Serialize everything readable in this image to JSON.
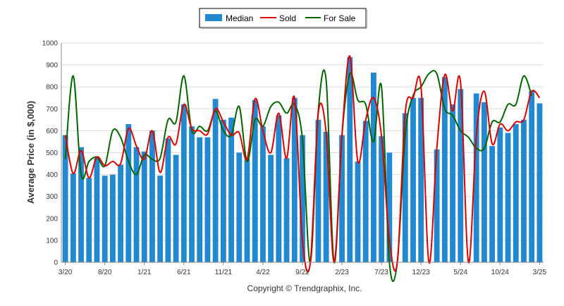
{
  "chart_data": {
    "type": "bar",
    "ylabel": "Average Price (in $,000)",
    "ylim": [
      0,
      1000
    ],
    "yticks": [
      0,
      100,
      200,
      300,
      400,
      500,
      600,
      700,
      800,
      900,
      1000
    ],
    "x_tick_labels": [
      "3/20",
      "8/20",
      "1/21",
      "6/21",
      "11/21",
      "4/22",
      "9/22",
      "2/23",
      "7/23",
      "12/23",
      "5/24",
      "10/24",
      "3/25"
    ],
    "grid": true,
    "legend_position": "top-center",
    "copyright": "Copyright © Trendgraphix, Inc.",
    "colors": {
      "median": "#2288d0",
      "sold": "#dd0000",
      "for_sale": "#006600"
    },
    "series": [
      {
        "name": "Median",
        "kind": "bar",
        "values": [
          580,
          405,
          525,
          385,
          475,
          395,
          400,
          445,
          630,
          525,
          505,
          600,
          395,
          565,
          490,
          720,
          620,
          570,
          570,
          745,
          650,
          660,
          500,
          470,
          740,
          620,
          490,
          670,
          475,
          750,
          580,
          0,
          650,
          595,
          0,
          580,
          935,
          460,
          645,
          865,
          575,
          500,
          0,
          680,
          750,
          750,
          0,
          515,
          845,
          720,
          790,
          0,
          770,
          730,
          530,
          615,
          590,
          630,
          650,
          780,
          725
        ]
      },
      {
        "name": "Sold",
        "kind": "line",
        "values": [
          580,
          405,
          510,
          385,
          480,
          440,
          460,
          450,
          610,
          530,
          470,
          600,
          410,
          570,
          540,
          720,
          610,
          600,
          585,
          700,
          640,
          580,
          590,
          470,
          745,
          600,
          500,
          680,
          475,
          750,
          100,
          0,
          680,
          590,
          0,
          580,
          940,
          460,
          650,
          750,
          575,
          100,
          0,
          680,
          750,
          800,
          0,
          520,
          855,
          690,
          820,
          0,
          580,
          780,
          540,
          630,
          600,
          640,
          650,
          780,
          750
        ]
      },
      {
        "name": "For Sale",
        "kind": "line",
        "values": [
          470,
          850,
          400,
          460,
          480,
          440,
          600,
          570,
          460,
          400,
          490,
          470,
          475,
          650,
          640,
          850,
          600,
          620,
          600,
          690,
          600,
          580,
          710,
          460,
          650,
          620,
          710,
          730,
          680,
          720,
          560,
          0,
          690,
          830,
          0,
          580,
          860,
          740,
          720,
          550,
          800,
          0,
          0,
          580,
          760,
          800,
          860,
          860,
          700,
          670,
          600,
          570,
          520,
          520,
          640,
          640,
          720,
          720,
          850,
          760,
          0
        ]
      }
    ]
  }
}
